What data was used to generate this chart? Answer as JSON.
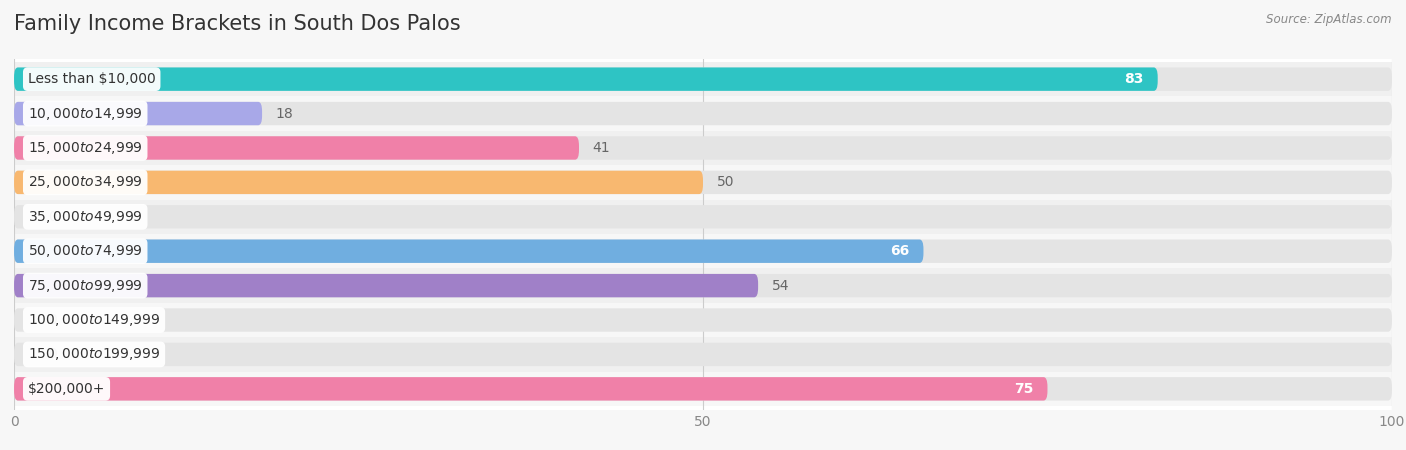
{
  "title": "Family Income Brackets in South Dos Palos",
  "source": "Source: ZipAtlas.com",
  "categories": [
    "Less than $10,000",
    "$10,000 to $14,999",
    "$15,000 to $24,999",
    "$25,000 to $34,999",
    "$35,000 to $49,999",
    "$50,000 to $74,999",
    "$75,000 to $99,999",
    "$100,000 to $149,999",
    "$150,000 to $199,999",
    "$200,000+"
  ],
  "values": [
    83,
    18,
    41,
    50,
    0,
    66,
    54,
    0,
    0,
    75
  ],
  "bar_colors": [
    "#2EC4C4",
    "#A8A8E8",
    "#F080A8",
    "#F8B870",
    "#F8A898",
    "#70AEE0",
    "#A080C8",
    "#60D0C8",
    "#A8A8E8",
    "#F080A8"
  ],
  "xlim": [
    0,
    100
  ],
  "background_color": "#f7f7f7",
  "bar_bg_color": "#e4e4e4",
  "row_bg_colors": [
    "#f0f0f0",
    "#f7f7f7"
  ],
  "title_fontsize": 15,
  "label_fontsize": 10,
  "value_fontsize": 10
}
